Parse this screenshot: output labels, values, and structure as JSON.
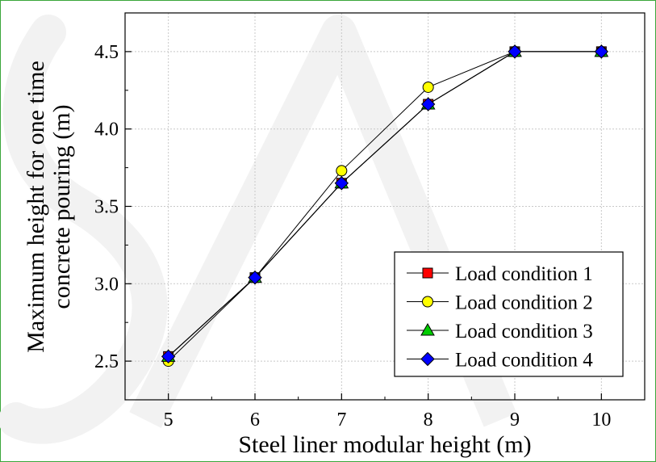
{
  "chart_data": {
    "type": "line",
    "title": "",
    "xlabel": "Steel liner modular height (m)",
    "ylabel_lines": [
      "Maximum height for one time",
      "concrete pouring (m)"
    ],
    "x": [
      5,
      6,
      7,
      8,
      9,
      10
    ],
    "xlim": [
      4.5,
      10.5
    ],
    "ylim": [
      2.25,
      4.75
    ],
    "xticks": [
      "5",
      "6",
      "7",
      "8",
      "9",
      "10"
    ],
    "yticks": [
      "2.5",
      "3.0",
      "3.5",
      "4.0",
      "4.5"
    ],
    "grid": true,
    "legend_position": "bottom-right",
    "series": [
      {
        "name": "Load condition 1",
        "marker": "square",
        "color": "#ff0000",
        "values": [
          2.53,
          3.04,
          3.65,
          4.16,
          4.5,
          4.5
        ]
      },
      {
        "name": "Load condition 2",
        "marker": "circle",
        "color": "#ffff00",
        "values": [
          2.5,
          3.04,
          3.73,
          4.27,
          4.5,
          4.5
        ]
      },
      {
        "name": "Load condition 3",
        "marker": "triangle",
        "color": "#00cc00",
        "values": [
          2.53,
          3.04,
          3.65,
          4.16,
          4.5,
          4.5
        ]
      },
      {
        "name": "Load condition 4",
        "marker": "diamond",
        "color": "#0000ff",
        "values": [
          2.53,
          3.04,
          3.65,
          4.16,
          4.5,
          4.5
        ]
      }
    ]
  }
}
